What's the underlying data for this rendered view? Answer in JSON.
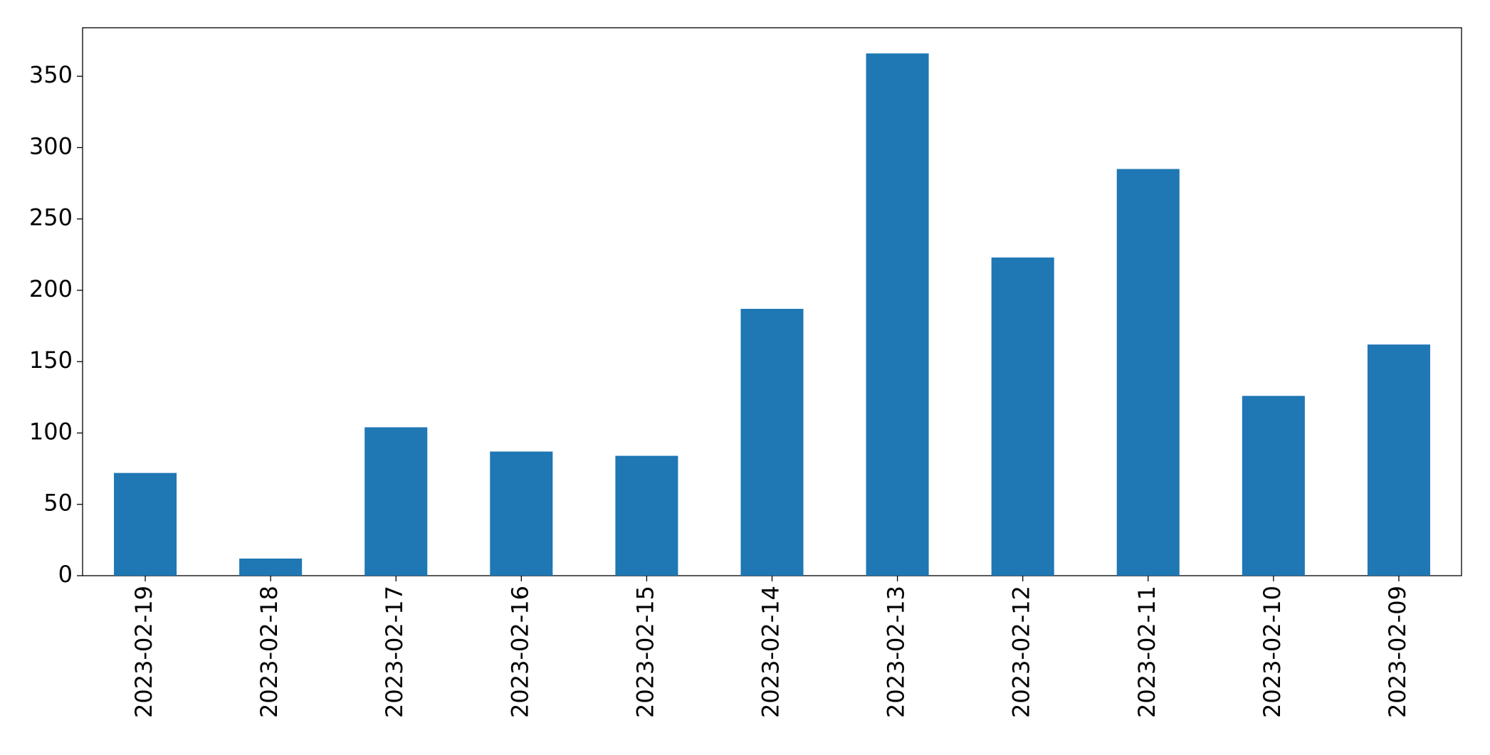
{
  "chart_data": {
    "type": "bar",
    "categories": [
      "2023-02-19",
      "2023-02-18",
      "2023-02-17",
      "2023-02-16",
      "2023-02-15",
      "2023-02-14",
      "2023-02-13",
      "2023-02-12",
      "2023-02-11",
      "2023-02-10",
      "2023-02-09"
    ],
    "values": [
      72,
      12,
      104,
      87,
      84,
      187,
      366,
      223,
      285,
      126,
      162
    ],
    "color": "#1f77b4",
    "ylim": [
      0,
      384
    ],
    "yticks": [
      0,
      50,
      100,
      150,
      200,
      250,
      300,
      350
    ],
    "grid": false
  }
}
